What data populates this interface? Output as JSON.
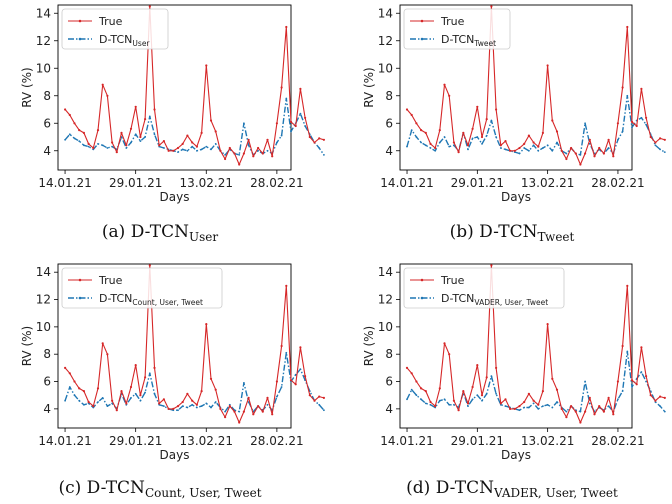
{
  "chart_data": [
    {
      "type": "line",
      "caption": {
        "prefix": "(a) D-TCN",
        "sub": "User"
      },
      "xlabel": "Days",
      "ylabel": "RV (%)",
      "x_ticks": [
        "14.01.21",
        "29.01.21",
        "13.02.21",
        "28.02.21"
      ],
      "x_tick_days": [
        0,
        15,
        30,
        45
      ],
      "xlim": [
        -1.5,
        48
      ],
      "ylim": [
        2.6,
        14.6
      ],
      "y_ticks": [
        4,
        6,
        8,
        10,
        12,
        14
      ],
      "legend_placement": "top-left",
      "series": [
        {
          "name": "True",
          "color": "#d62728",
          "values": [
            7.0,
            6.6,
            6.0,
            5.5,
            5.3,
            4.5,
            4.2,
            5.5,
            8.8,
            8.0,
            4.6,
            3.9,
            5.3,
            4.4,
            5.6,
            7.2,
            5.0,
            6.3,
            14.5,
            7.0,
            4.4,
            4.7,
            4.0,
            4.0,
            4.2,
            4.5,
            5.1,
            4.6,
            4.3,
            5.3,
            10.2,
            6.2,
            5.4,
            4.0,
            3.4,
            4.2,
            3.8,
            3.0,
            3.8,
            4.8,
            3.6,
            4.2,
            3.8,
            4.8,
            3.6,
            6.0,
            8.6,
            13.0,
            6.1,
            5.8,
            8.5,
            6.4,
            5.0,
            4.6,
            4.9,
            4.8
          ]
        },
        {
          "name": "D-TCN",
          "name_sub": "User",
          "color": "#1f77b4",
          "values": [
            4.8,
            5.2,
            4.9,
            4.7,
            4.4,
            4.3,
            4.1,
            4.5,
            4.4,
            4.2,
            4.3,
            4.1,
            5.0,
            4.2,
            4.6,
            5.2,
            4.7,
            5.0,
            6.5,
            5.2,
            4.3,
            4.2,
            4.1,
            4.0,
            3.9,
            4.1,
            4.0,
            4.3,
            4.0,
            4.1,
            4.3,
            4.1,
            4.5,
            4.0,
            3.7,
            4.1,
            3.8,
            3.7,
            6.0,
            4.4,
            3.7,
            4.0,
            3.8,
            4.0,
            3.8,
            4.6,
            5.1,
            7.8,
            5.4,
            6.0,
            6.7,
            5.8,
            5.2,
            4.6,
            4.2,
            3.7
          ]
        }
      ]
    },
    {
      "type": "line",
      "caption": {
        "prefix": "(b) D-TCN",
        "sub": "Tweet"
      },
      "xlabel": "Days",
      "ylabel": "RV (%)",
      "x_ticks": [
        "14.01.21",
        "29.01.21",
        "13.02.21",
        "28.02.21"
      ],
      "x_tick_days": [
        0,
        15,
        30,
        45
      ],
      "xlim": [
        -1.5,
        48
      ],
      "ylim": [
        2.6,
        14.6
      ],
      "y_ticks": [
        4,
        6,
        8,
        10,
        12,
        14
      ],
      "legend_placement": "top-left",
      "series": [
        {
          "name": "True",
          "color": "#d62728",
          "values": [
            7.0,
            6.6,
            6.0,
            5.5,
            5.3,
            4.5,
            4.2,
            5.5,
            8.8,
            8.0,
            4.6,
            3.9,
            5.3,
            4.4,
            5.6,
            7.2,
            5.0,
            6.3,
            14.5,
            7.0,
            4.4,
            4.7,
            4.0,
            4.0,
            4.2,
            4.5,
            5.1,
            4.6,
            4.3,
            5.3,
            10.2,
            6.2,
            5.4,
            4.0,
            3.4,
            4.2,
            3.8,
            3.0,
            3.8,
            4.8,
            3.6,
            4.2,
            3.8,
            4.8,
            3.6,
            6.0,
            8.6,
            13.0,
            6.1,
            5.8,
            8.5,
            6.4,
            5.0,
            4.6,
            4.9,
            4.8
          ]
        },
        {
          "name": "D-TCN",
          "name_sub": "Tweet",
          "color": "#1f77b4",
          "values": [
            4.3,
            5.5,
            5.0,
            4.6,
            4.4,
            4.2,
            4.0,
            4.6,
            5.0,
            4.3,
            4.4,
            4.0,
            5.3,
            4.1,
            4.9,
            5.0,
            4.5,
            5.1,
            6.2,
            5.0,
            4.2,
            4.1,
            4.0,
            3.9,
            3.8,
            4.2,
            4.0,
            4.4,
            4.0,
            4.2,
            4.4,
            4.0,
            4.6,
            4.0,
            3.8,
            4.2,
            3.8,
            3.7,
            6.0,
            4.5,
            3.8,
            4.1,
            3.8,
            4.2,
            3.8,
            4.8,
            5.4,
            8.0,
            5.7,
            6.2,
            6.4,
            5.9,
            5.2,
            4.4,
            4.1,
            3.9
          ]
        }
      ]
    },
    {
      "type": "line",
      "caption": {
        "prefix": "(c) D-TCN",
        "sub": "Count, User, Tweet"
      },
      "xlabel": "Days",
      "ylabel": "RV (%)",
      "x_ticks": [
        "14.01.21",
        "29.01.21",
        "13.02.21",
        "28.02.21"
      ],
      "x_tick_days": [
        0,
        15,
        30,
        45
      ],
      "xlim": [
        -1.5,
        48
      ],
      "ylim": [
        2.6,
        14.6
      ],
      "y_ticks": [
        4,
        6,
        8,
        10,
        12,
        14
      ],
      "legend_placement": "top-left",
      "series": [
        {
          "name": "True",
          "color": "#d62728",
          "values": [
            7.0,
            6.6,
            6.0,
            5.5,
            5.3,
            4.5,
            4.2,
            5.5,
            8.8,
            8.0,
            4.6,
            3.9,
            5.3,
            4.4,
            5.6,
            7.2,
            5.0,
            6.3,
            14.5,
            7.0,
            4.4,
            4.7,
            4.0,
            4.0,
            4.2,
            4.5,
            5.1,
            4.6,
            4.3,
            5.3,
            10.2,
            6.2,
            5.4,
            4.0,
            3.4,
            4.2,
            3.8,
            3.0,
            3.8,
            4.8,
            3.6,
            4.2,
            3.8,
            4.8,
            3.6,
            6.0,
            8.6,
            13.0,
            6.1,
            5.8,
            8.5,
            6.4,
            5.0,
            4.6,
            4.9,
            4.8
          ]
        },
        {
          "name": "D-TCN",
          "name_sub": "Count, User, Tweet",
          "color": "#1f77b4",
          "values": [
            4.6,
            5.6,
            5.0,
            4.6,
            4.3,
            4.4,
            4.1,
            4.5,
            4.8,
            4.2,
            4.4,
            4.0,
            5.1,
            4.3,
            4.8,
            5.1,
            4.6,
            5.2,
            6.6,
            5.1,
            4.3,
            4.2,
            4.0,
            3.9,
            3.9,
            4.2,
            4.1,
            4.3,
            4.1,
            4.2,
            4.4,
            4.1,
            4.5,
            4.1,
            3.8,
            4.3,
            3.9,
            3.8,
            5.9,
            4.5,
            3.8,
            4.2,
            3.9,
            4.3,
            3.9,
            4.9,
            5.6,
            8.1,
            6.0,
            6.5,
            6.9,
            6.1,
            5.3,
            4.6,
            4.3,
            3.9
          ]
        }
      ]
    },
    {
      "type": "line",
      "caption": {
        "prefix": "(d) D-TCN",
        "sub": "VADER, User, Tweet"
      },
      "xlabel": "Days",
      "ylabel": "RV (%)",
      "x_ticks": [
        "14.01.21",
        "29.01.21",
        "13.02.21",
        "28.02.21"
      ],
      "x_tick_days": [
        0,
        15,
        30,
        45
      ],
      "xlim": [
        -1.5,
        48
      ],
      "ylim": [
        2.6,
        14.6
      ],
      "y_ticks": [
        4,
        6,
        8,
        10,
        12,
        14
      ],
      "legend_placement": "top-left",
      "series": [
        {
          "name": "True",
          "color": "#d62728",
          "values": [
            7.0,
            6.6,
            6.0,
            5.5,
            5.3,
            4.5,
            4.2,
            5.5,
            8.8,
            8.0,
            4.6,
            3.9,
            5.3,
            4.4,
            5.6,
            7.2,
            5.0,
            6.3,
            14.5,
            7.0,
            4.4,
            4.7,
            4.0,
            4.0,
            4.2,
            4.5,
            5.1,
            4.6,
            4.3,
            5.3,
            10.2,
            6.2,
            5.4,
            4.0,
            3.4,
            4.2,
            3.8,
            3.0,
            3.8,
            4.8,
            3.6,
            4.2,
            3.8,
            4.8,
            3.6,
            6.0,
            8.6,
            13.0,
            6.1,
            5.8,
            8.5,
            6.4,
            5.0,
            4.6,
            4.9,
            4.8
          ]
        },
        {
          "name": "D-TCN",
          "name_sub": "VADER, User, Tweet",
          "color": "#1f77b4",
          "values": [
            4.7,
            5.4,
            5.0,
            4.7,
            4.4,
            4.3,
            4.1,
            4.6,
            4.7,
            4.3,
            4.3,
            4.1,
            5.2,
            4.2,
            4.7,
            5.0,
            4.6,
            5.1,
            6.4,
            5.1,
            4.3,
            4.2,
            4.1,
            4.0,
            3.9,
            4.1,
            4.1,
            4.4,
            4.0,
            4.2,
            4.3,
            4.1,
            4.5,
            4.1,
            3.8,
            4.2,
            3.9,
            3.8,
            6.0,
            4.4,
            3.8,
            4.1,
            3.9,
            4.2,
            3.8,
            4.7,
            5.3,
            8.2,
            5.6,
            6.2,
            6.7,
            6.0,
            5.3,
            4.5,
            4.2,
            3.8
          ]
        }
      ]
    }
  ]
}
